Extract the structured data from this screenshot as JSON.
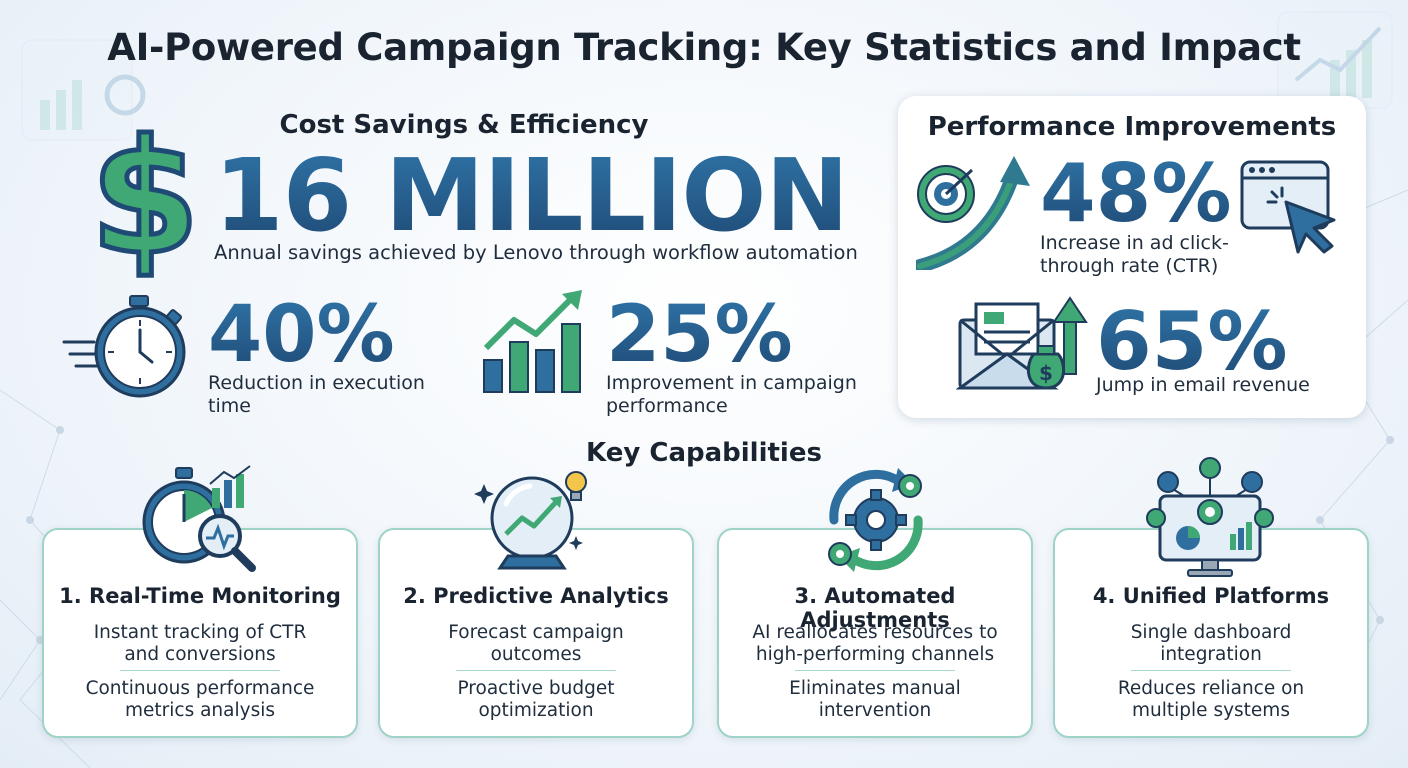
{
  "title": "AI-Powered Campaign Tracking: Key Statistics and Impact",
  "cost": {
    "heading": "Cost Savings & Efficiency",
    "symbol": "$",
    "big_value": "16 MILLION",
    "big_desc": "Annual savings achieved by Lenovo through workflow automation",
    "stat1": {
      "value": "40%",
      "desc": [
        "Reduction in execution",
        "time"
      ]
    },
    "stat2": {
      "value": "25%",
      "desc": [
        "Improvement in campaign",
        "performance"
      ]
    }
  },
  "performance": {
    "heading": "Performance Improvements",
    "stat1": {
      "value": "48%",
      "desc": [
        "Increase in ad click-",
        "through rate (CTR)"
      ]
    },
    "stat2": {
      "value": "65%",
      "desc": [
        "Jump in email revenue"
      ]
    }
  },
  "capabilities": {
    "heading": "Key Capabilities",
    "items": [
      {
        "title": "1. Real-Time Monitoring",
        "point1": [
          "Instant tracking of CTR",
          "and conversions"
        ],
        "point2": [
          "Continuous performance",
          "metrics analysis"
        ]
      },
      {
        "title": "2. Predictive Analytics",
        "point1": [
          "Forecast campaign",
          "outcomes"
        ],
        "point2": [
          "Proactive budget",
          "optimization"
        ]
      },
      {
        "title": "3. Automated Adjustments",
        "point1": [
          "AI reallocates resources to",
          "high-performing channels"
        ],
        "point2": [
          "Eliminates manual",
          "intervention"
        ]
      },
      {
        "title": "4. Unified Platforms",
        "point1": [
          "Single dashboard",
          "integration"
        ],
        "point2": [
          "Reduces reliance on",
          "multiple systems"
        ]
      }
    ]
  },
  "colors": {
    "navy": "#24527e",
    "green": "#3fa874",
    "teal_border": "#9fd3c7",
    "ink": "#1a2330"
  },
  "icons": [
    "dollar-sign-icon",
    "stopwatch-icon",
    "bar-chart-growth-icon",
    "target-arrow-icon",
    "cursor-click-icon",
    "email-money-icon",
    "stopwatch-magnifier-icon",
    "crystal-ball-icon",
    "gears-cycle-icon",
    "dashboard-monitor-icon"
  ]
}
